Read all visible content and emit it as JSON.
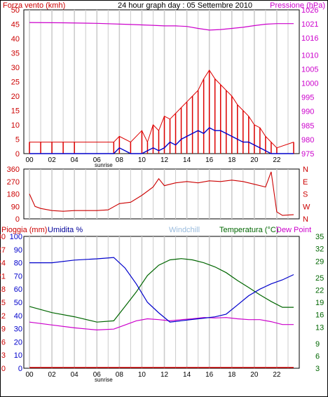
{
  "header": {
    "left": "Forza vento (kmh)",
    "center": "24 hour graph day : 05 Settembre 2010",
    "right": "Pressione (hPa)"
  },
  "labels": {
    "rain": "Pioggia (mm)",
    "humidity": "Umidita %",
    "windchill": "Windchill",
    "temperature": "Temperatura (°C)",
    "dewpoint": "Dew Point",
    "sunrise": "sunrise",
    "sunset": "sunset"
  },
  "colors": {
    "wind_gust": "#dd0000",
    "wind_avg": "#0000cc",
    "pressure": "#cc00cc",
    "direction": "#cc0000",
    "humidity": "#0000cc",
    "temperature": "#006600",
    "dewpoint": "#cc00cc",
    "rain": "#cc0000",
    "windchill": "#99bbdd",
    "grid": "#cccccc"
  },
  "chart_data": [
    {
      "type": "line",
      "name": "wind-pressure",
      "x_ticks": [
        "00",
        "02",
        "04",
        "06",
        "08",
        "10",
        "12",
        "14",
        "16",
        "18",
        "20",
        "22"
      ],
      "y_left_ticks": [
        0,
        5,
        10,
        15,
        20,
        25,
        30,
        35,
        40,
        45,
        50
      ],
      "y_left_range": [
        0,
        50
      ],
      "y_right_ticks": [
        975,
        980,
        985,
        990,
        995,
        1000,
        1005,
        1010,
        1016,
        1021,
        1026
      ],
      "y_right_range": [
        975,
        1026
      ],
      "pressure": {
        "x": [
          0,
          3,
          6,
          9,
          11,
          12,
          13,
          14,
          15,
          16,
          17,
          18,
          19,
          20,
          21,
          22,
          23.5
        ],
        "y": [
          1021.5,
          1021.4,
          1021.2,
          1020.8,
          1020.5,
          1020.3,
          1020.3,
          1020.1,
          1019.4,
          1018.8,
          1019.0,
          1019.4,
          1019.8,
          1020.4,
          1020.9,
          1021.1,
          1021.1
        ]
      },
      "wind_avg": {
        "x": [
          0,
          7.5,
          8,
          8.5,
          9,
          10,
          10.5,
          11,
          11.5,
          12,
          12.5,
          13,
          13.5,
          14,
          14.5,
          15,
          15.5,
          16,
          16.5,
          17,
          17.5,
          18,
          18.5,
          19,
          19.5,
          20,
          20.5,
          21,
          21.5,
          23.5
        ],
        "y": [
          0,
          0,
          2,
          1,
          0,
          0,
          1,
          2,
          1,
          2,
          4,
          3,
          5,
          6,
          7,
          8,
          7,
          9,
          8,
          8,
          7,
          6,
          5,
          4,
          4,
          3,
          2,
          1,
          0,
          0
        ]
      },
      "wind_gust": {
        "x": [
          0,
          1,
          2,
          3,
          4,
          7.5,
          8,
          9,
          10,
          10.5,
          11,
          11.5,
          12,
          12.5,
          13,
          13.5,
          14,
          14.5,
          15,
          15.5,
          16,
          16.5,
          17,
          17.5,
          18,
          18.5,
          19,
          19.5,
          20,
          20.5,
          21,
          21.5,
          22,
          23.5
        ],
        "y": [
          4,
          4,
          4,
          4,
          4,
          4,
          6,
          4,
          8,
          4,
          10,
          8,
          13,
          12,
          14,
          16,
          18,
          20,
          22,
          26,
          29,
          26,
          24,
          22,
          20,
          17,
          15,
          13,
          10,
          9,
          6,
          4,
          2,
          4
        ]
      }
    },
    {
      "type": "line",
      "name": "wind-direction",
      "y_ticks": [
        0,
        90,
        180,
        270,
        360
      ],
      "y_range": [
        0,
        360
      ],
      "y_right_ticks": [
        "N",
        "W",
        "S",
        "E",
        "N"
      ],
      "direction": {
        "x": [
          0,
          0.5,
          1,
          2,
          3,
          4,
          5,
          6,
          7,
          8,
          9,
          10,
          11,
          11.5,
          12,
          13,
          14,
          15,
          16,
          17,
          18,
          19,
          20,
          21,
          21.5,
          22,
          22.5,
          23.5
        ],
        "y": [
          180,
          90,
          75,
          60,
          55,
          60,
          60,
          60,
          65,
          110,
          120,
          170,
          230,
          290,
          240,
          260,
          270,
          260,
          275,
          270,
          280,
          270,
          250,
          230,
          340,
          50,
          25,
          30
        ]
      }
    },
    {
      "type": "line",
      "name": "humidity-temperature",
      "y_left_ticks": [
        0,
        10,
        20,
        30,
        40,
        50,
        60,
        70,
        80,
        90,
        100
      ],
      "y_left_range": [
        0,
        100
      ],
      "y_rain_ticks": [
        0,
        3,
        6,
        9,
        12,
        15,
        18,
        21,
        24,
        27,
        30
      ],
      "y_right_ticks": [
        3,
        6,
        9,
        13,
        16,
        19,
        22,
        25,
        29,
        32,
        35
      ],
      "y_right_range": [
        3,
        35
      ],
      "humidity": {
        "x": [
          0,
          2,
          4,
          6,
          7.5,
          8.5,
          9.5,
          10.5,
          11.5,
          12.5,
          13.5,
          14.5,
          15.5,
          16.5,
          17.5,
          18.5,
          19.5,
          20.5,
          21.5,
          22.5,
          23.5
        ],
        "y": [
          80,
          80,
          82,
          83,
          84,
          76,
          64,
          50,
          42,
          35,
          36,
          37,
          38,
          39,
          41,
          48,
          55,
          60,
          64,
          67,
          71
        ]
      },
      "temperature": {
        "x": [
          0,
          2,
          4,
          6,
          7.5,
          8.5,
          9.5,
          10.5,
          11.5,
          12.5,
          13.5,
          14.5,
          15.5,
          16.5,
          17.5,
          18.5,
          19.5,
          20.5,
          21.5,
          22.5,
          23.5
        ],
        "y": [
          18,
          16.5,
          15.5,
          14.2,
          14.5,
          18,
          21.5,
          25.5,
          28,
          29.3,
          29.6,
          29.3,
          28.6,
          27.6,
          26.2,
          24.3,
          22.6,
          20.8,
          19.2,
          17.8,
          17.8
        ]
      },
      "dewpoint": {
        "x": [
          0,
          2,
          4,
          6,
          7.5,
          8.5,
          9.5,
          10.5,
          11.5,
          12.5,
          13.5,
          14.5,
          15.5,
          16.5,
          17.5,
          18.5,
          19.5,
          20.5,
          21.5,
          22.5,
          23.5
        ],
        "y": [
          14.2,
          13.5,
          12.8,
          12.3,
          12.5,
          13.5,
          14.5,
          15,
          14.8,
          14.5,
          14.8,
          15,
          15.3,
          15.2,
          15.3,
          15,
          14.8,
          14.8,
          14.3,
          13.6,
          13.6
        ]
      },
      "rain": {
        "x": [
          0,
          23.5
        ],
        "y": [
          0,
          0
        ]
      }
    }
  ]
}
